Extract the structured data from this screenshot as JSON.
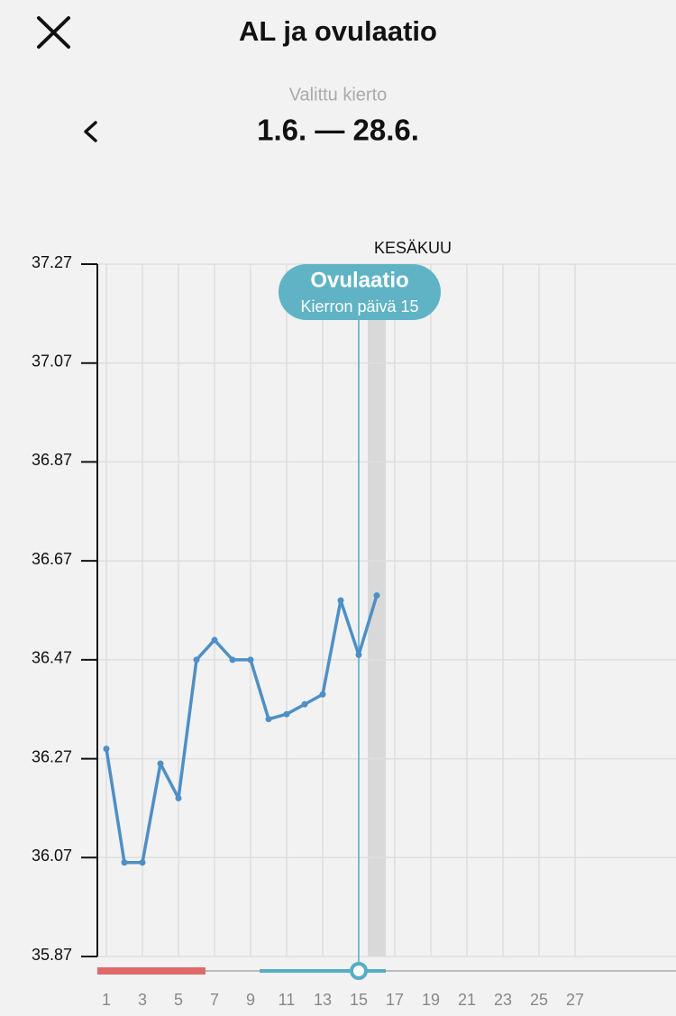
{
  "header": {
    "title": "AL ja ovulaatio",
    "cycle_label": "Valittu kierto",
    "cycle_range": "1.6. — 28.6."
  },
  "chart_data": {
    "type": "line",
    "month_label": "KESÄKUU",
    "annotation": {
      "title": "Ovulaatio",
      "subtitle": "Kierron päivä 15",
      "day": 15
    },
    "x": [
      1,
      2,
      3,
      4,
      5,
      6,
      7,
      8,
      9,
      10,
      11,
      12,
      13,
      14,
      15,
      16
    ],
    "series": [
      {
        "color": "#4e8fc6",
        "values": [
          36.29,
          36.06,
          36.06,
          36.26,
          36.19,
          36.47,
          36.51,
          36.47,
          36.47,
          36.35,
          36.36,
          36.38,
          36.4,
          36.59,
          36.48,
          36.6
        ]
      }
    ],
    "xlim": [
      0.5,
      32.6
    ],
    "xticks": [
      1,
      3,
      5,
      7,
      9,
      11,
      13,
      15,
      17,
      19,
      21,
      23,
      25,
      27
    ],
    "ylim": [
      35.87,
      37.27
    ],
    "yticks": [
      35.87,
      36.07,
      36.27,
      36.47,
      36.67,
      36.87,
      37.07,
      37.27
    ],
    "grid": true
  }
}
